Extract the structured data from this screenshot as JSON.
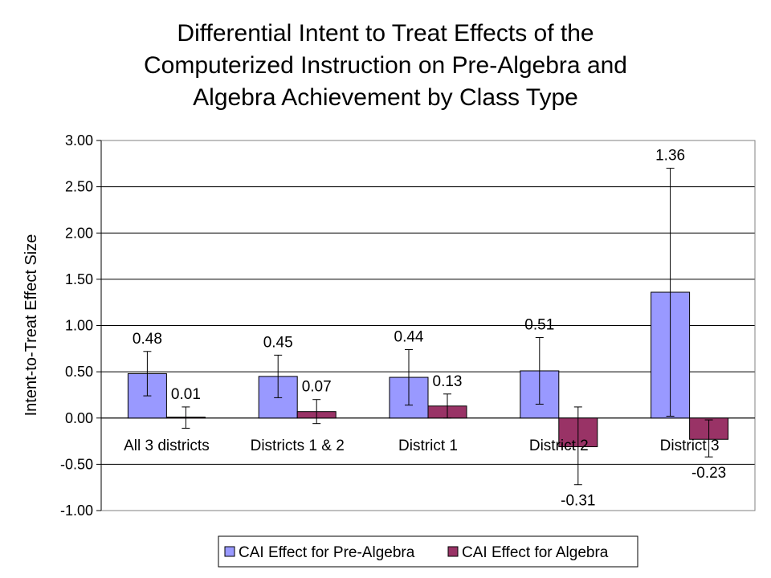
{
  "chart_data": {
    "type": "bar",
    "title_lines": [
      "Differential Intent to Treat Effects of the",
      "Computerized Instruction on Pre-Algebra and",
      "Algebra Achievement by Class Type"
    ],
    "ylabel": "Intent-to-Treat Effect Size",
    "xlabel": "",
    "ylim": [
      -1.0,
      3.0
    ],
    "ytick_step": 0.5,
    "yticks": [
      "3.00",
      "2.50",
      "2.00",
      "1.50",
      "1.00",
      "0.50",
      "0.00",
      "-0.50",
      "-1.00"
    ],
    "categories": [
      "All 3 districts",
      "Districts 1 & 2",
      "District 1",
      "District 2",
      "District 3"
    ],
    "series": [
      {
        "name": "CAI Effect for Pre-Algebra",
        "color": "#9999ff",
        "values": [
          0.48,
          0.45,
          0.44,
          0.51,
          1.36
        ],
        "labels": [
          "0.48",
          "0.45",
          "0.44",
          "0.51",
          "1.36"
        ],
        "error_low": [
          0.24,
          0.22,
          0.14,
          0.15,
          0.02
        ],
        "error_high": [
          0.72,
          0.68,
          0.74,
          0.87,
          2.7
        ]
      },
      {
        "name": "CAI Effect for Algebra",
        "color": "#993366",
        "values": [
          0.01,
          0.07,
          0.13,
          -0.31,
          -0.23
        ],
        "labels": [
          "0.01",
          "0.07",
          "0.13",
          "-0.31",
          "-0.23"
        ],
        "error_low": [
          -0.11,
          -0.06,
          0.0,
          -0.72,
          -0.42
        ],
        "error_high": [
          0.12,
          0.2,
          0.26,
          0.12,
          -0.02
        ]
      }
    ],
    "grid": true,
    "legend": "bottom"
  }
}
